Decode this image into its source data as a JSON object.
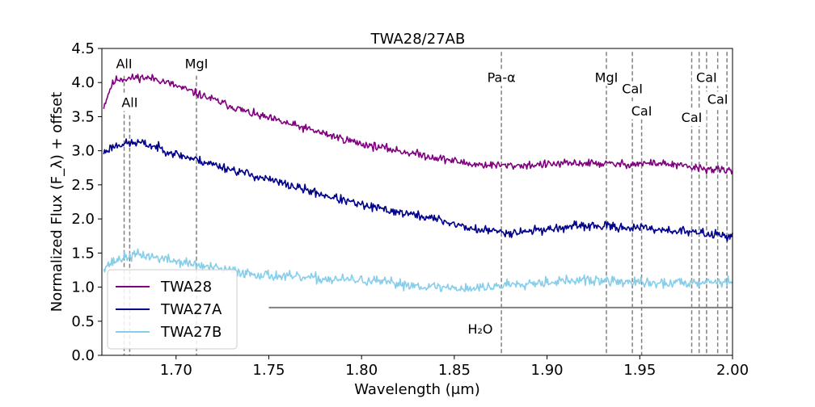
{
  "chart_data": {
    "type": "line",
    "title": "TWA28/27AB",
    "xlabel": "Wavelength (μm)",
    "ylabel": "Normalized Flux (F_λ) + offset",
    "xlim": [
      1.66,
      2.0
    ],
    "ylim": [
      0.0,
      4.5
    ],
    "x_ticks": [
      1.7,
      1.75,
      1.8,
      1.85,
      1.9,
      1.95,
      2.0
    ],
    "x_tick_labels": [
      "1.70",
      "1.75",
      "1.80",
      "1.85",
      "1.90",
      "1.95",
      "2.00"
    ],
    "y_ticks": [
      0.0,
      0.5,
      1.0,
      1.5,
      2.0,
      2.5,
      3.0,
      3.5,
      4.0,
      4.5
    ],
    "y_tick_labels": [
      "0.0",
      "0.5",
      "1.0",
      "1.5",
      "2.0",
      "2.5",
      "3.0",
      "3.5",
      "4.0",
      "4.5"
    ],
    "grid": false,
    "legend_position": "lower-left",
    "series": [
      {
        "name": "TWA28",
        "color": "#800080",
        "noise": 0.055,
        "seed": 11,
        "anchors": [
          [
            1.661,
            3.65
          ],
          [
            1.665,
            3.95
          ],
          [
            1.668,
            4.05
          ],
          [
            1.675,
            4.06
          ],
          [
            1.68,
            4.08
          ],
          [
            1.69,
            4.05
          ],
          [
            1.7,
            3.95
          ],
          [
            1.71,
            3.85
          ],
          [
            1.72,
            3.75
          ],
          [
            1.74,
            3.55
          ],
          [
            1.76,
            3.4
          ],
          [
            1.78,
            3.25
          ],
          [
            1.8,
            3.1
          ],
          [
            1.82,
            3.0
          ],
          [
            1.84,
            2.9
          ],
          [
            1.86,
            2.8
          ],
          [
            1.88,
            2.78
          ],
          [
            1.9,
            2.8
          ],
          [
            1.92,
            2.82
          ],
          [
            1.94,
            2.8
          ],
          [
            1.96,
            2.82
          ],
          [
            1.98,
            2.75
          ],
          [
            2.0,
            2.7
          ]
        ]
      },
      {
        "name": "TWA27A",
        "color": "#00008b",
        "noise": 0.06,
        "seed": 23,
        "anchors": [
          [
            1.661,
            2.97
          ],
          [
            1.665,
            3.05
          ],
          [
            1.67,
            3.1
          ],
          [
            1.68,
            3.12
          ],
          [
            1.69,
            3.05
          ],
          [
            1.7,
            2.95
          ],
          [
            1.72,
            2.8
          ],
          [
            1.74,
            2.65
          ],
          [
            1.76,
            2.5
          ],
          [
            1.78,
            2.35
          ],
          [
            1.8,
            2.2
          ],
          [
            1.82,
            2.1
          ],
          [
            1.84,
            2.0
          ],
          [
            1.86,
            1.85
          ],
          [
            1.88,
            1.8
          ],
          [
            1.9,
            1.85
          ],
          [
            1.92,
            1.9
          ],
          [
            1.94,
            1.88
          ],
          [
            1.96,
            1.85
          ],
          [
            1.98,
            1.8
          ],
          [
            2.0,
            1.75
          ]
        ]
      },
      {
        "name": "TWA27B",
        "color": "#87ceeb",
        "noise": 0.07,
        "seed": 37,
        "anchors": [
          [
            1.661,
            1.3
          ],
          [
            1.67,
            1.42
          ],
          [
            1.68,
            1.48
          ],
          [
            1.7,
            1.38
          ],
          [
            1.72,
            1.28
          ],
          [
            1.74,
            1.2
          ],
          [
            1.76,
            1.15
          ],
          [
            1.78,
            1.12
          ],
          [
            1.8,
            1.1
          ],
          [
            1.82,
            1.05
          ],
          [
            1.84,
            1.0
          ],
          [
            1.86,
            0.98
          ],
          [
            1.875,
            1.02
          ],
          [
            1.88,
            1.05
          ],
          [
            1.9,
            1.08
          ],
          [
            1.92,
            1.1
          ],
          [
            1.94,
            1.08
          ],
          [
            1.96,
            1.05
          ],
          [
            1.98,
            1.08
          ],
          [
            2.0,
            1.08
          ]
        ]
      }
    ],
    "lines": [
      {
        "x": 1.672,
        "label": "AlI",
        "label_y": 4.21,
        "y_top": 4.1
      },
      {
        "x": 1.675,
        "label": "AlI",
        "label_y": 3.64,
        "y_top": 3.52
      },
      {
        "x": 1.711,
        "label": "MgI",
        "label_y": 4.21,
        "y_top": 4.1
      },
      {
        "x": 1.8754,
        "label": "Pa-α",
        "label_y": 4.01,
        "y_top": 4.45
      },
      {
        "x": 1.932,
        "label": "MgI",
        "label_y": 4.01,
        "y_top": 4.45
      },
      {
        "x": 1.946,
        "label": "CaI",
        "label_y": 3.84,
        "y_top": 4.45
      },
      {
        "x": 1.951,
        "label": "CaI",
        "label_y": 3.52,
        "y_top": 3.65
      },
      {
        "x": 1.978,
        "label": "CaI",
        "label_y": 3.42,
        "y_top": 4.45
      },
      {
        "x": 1.982,
        "label": "",
        "label_y": 0,
        "y_top": 4.45
      },
      {
        "x": 1.986,
        "label": "CaI",
        "label_y": 4.01,
        "y_top": 4.45
      },
      {
        "x": 1.992,
        "label": "CaI",
        "label_y": 3.69,
        "y_top": 4.45
      },
      {
        "x": 1.997,
        "label": "",
        "label_y": 0,
        "y_top": 4.45
      }
    ],
    "h2o_band": {
      "x_start": 1.75,
      "x_end": 2.0,
      "y": 0.7,
      "label": "H₂O",
      "label_x": 1.864,
      "label_y": 0.32
    }
  }
}
